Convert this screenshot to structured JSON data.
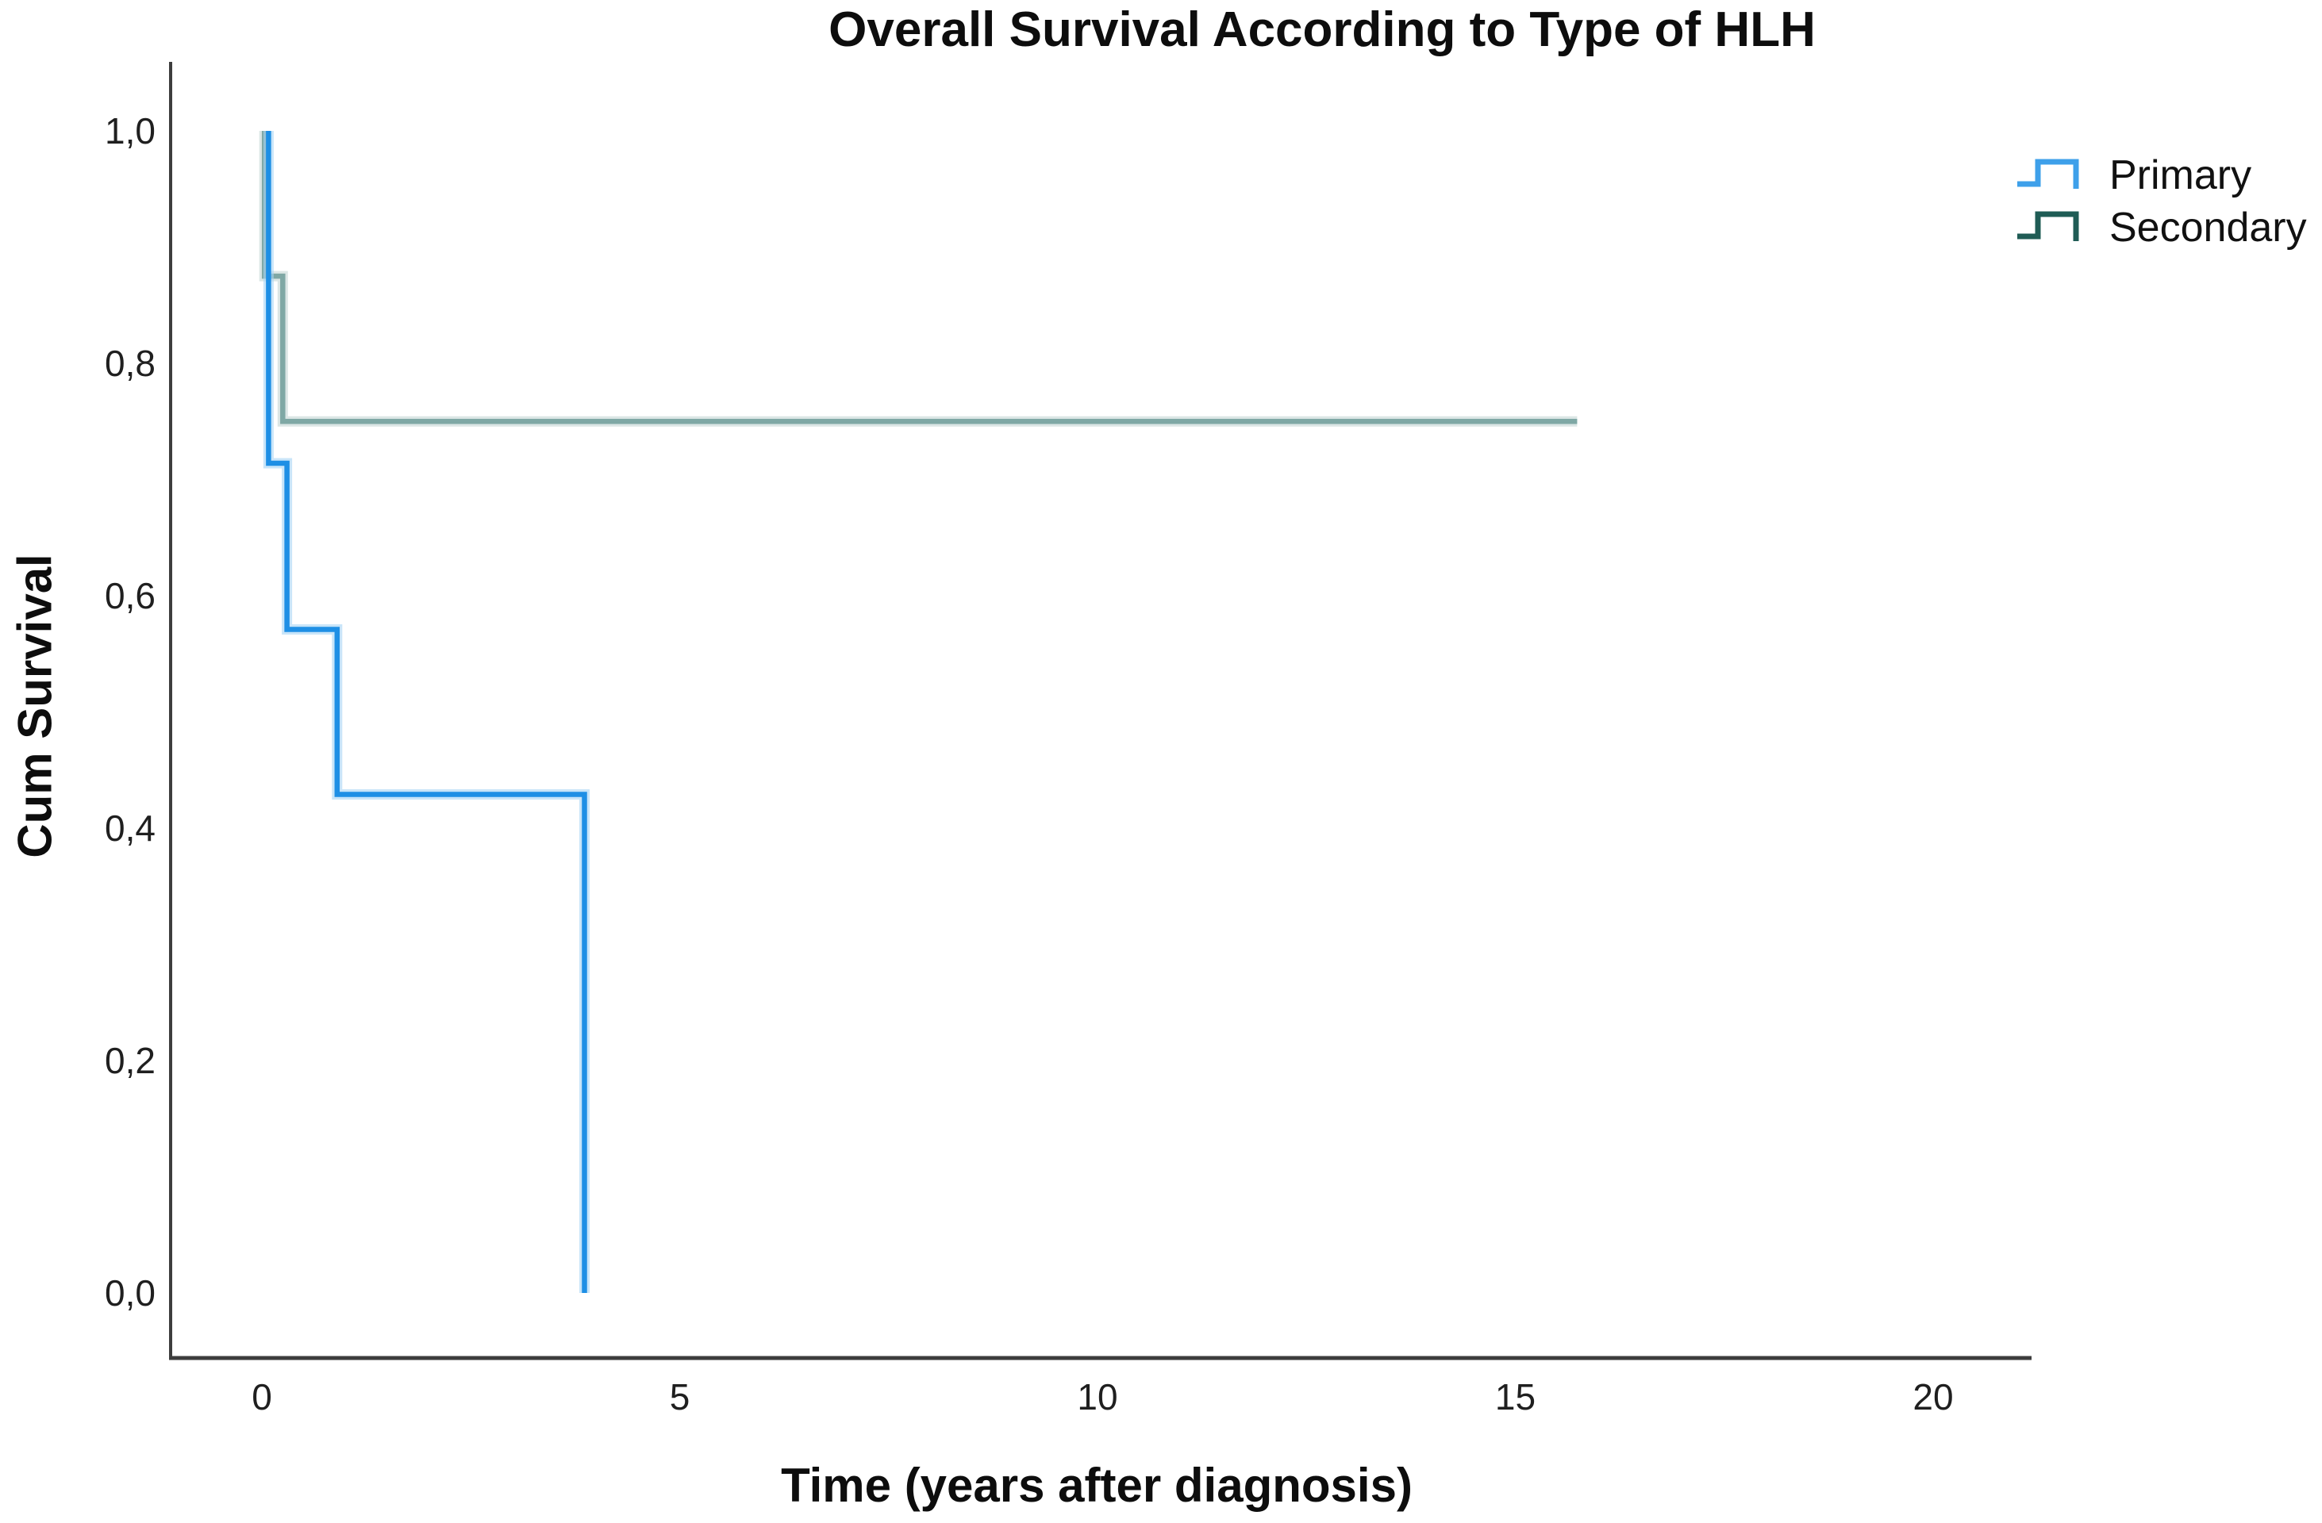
{
  "title": "Overall Survival According to Type of HLH",
  "y_axis": {
    "title": "Cum Survival",
    "ticks": [
      {
        "label": "1,0",
        "value": 1.0
      },
      {
        "label": "0,8",
        "value": 0.8
      },
      {
        "label": "0,6",
        "value": 0.6
      },
      {
        "label": "0,4",
        "value": 0.4
      },
      {
        "label": "0,2",
        "value": 0.2
      },
      {
        "label": "0,0",
        "value": 0.0
      }
    ]
  },
  "x_axis": {
    "title": "Time (years after diagnosis)",
    "ticks": [
      {
        "label": "0",
        "value": 0
      },
      {
        "label": "5",
        "value": 5
      },
      {
        "label": "10",
        "value": 10
      },
      {
        "label": "15",
        "value": 15
      },
      {
        "label": "20",
        "value": 20
      }
    ]
  },
  "legend": {
    "position": "top-right",
    "items": [
      {
        "label": "Primary"
      },
      {
        "label": "Secondary"
      }
    ]
  },
  "colors": {
    "axis": "#3d3d3d",
    "primary_line": "#1e8fe5",
    "primary_halo": "#a5d4f5",
    "primary_legend": "#3ea0ea",
    "secondary_line": "#7fa8a5",
    "secondary_halo": "#c3d6d3",
    "secondary_legend": "#1f5c55"
  },
  "chart_data": {
    "type": "line",
    "subtype": "kaplan_meier_step",
    "title": "Overall Survival According to Type of HLH",
    "xlabel": "Time (years after diagnosis)",
    "ylabel": "Cum Survival",
    "xlim": [
      -1.1,
      21.2
    ],
    "ylim": [
      -0.06,
      1.06
    ],
    "x_ticks": [
      0,
      5,
      10,
      15,
      20
    ],
    "y_ticks": [
      0.0,
      0.2,
      0.4,
      0.6,
      0.8,
      1.0
    ],
    "decimal_separator": ",",
    "grid": false,
    "legend_position": "top-right",
    "series": [
      {
        "name": "Primary",
        "color": "#1e8fe5",
        "halo": "#a5d4f5",
        "legend_color": "#3ea0ea",
        "points": [
          [
            0.08,
            1.0
          ],
          [
            0.08,
            0.714
          ],
          [
            0.3,
            0.714
          ],
          [
            0.3,
            0.571
          ],
          [
            0.9,
            0.571
          ],
          [
            0.9,
            0.429
          ],
          [
            3.86,
            0.429
          ],
          [
            3.86,
            0.0
          ]
        ]
      },
      {
        "name": "Secondary",
        "color": "#7fa8a5",
        "halo": "#c3d6d3",
        "legend_color": "#1f5c55",
        "points": [
          [
            0.03,
            1.0
          ],
          [
            0.03,
            0.875
          ],
          [
            0.25,
            0.875
          ],
          [
            0.25,
            0.75
          ],
          [
            15.74,
            0.75
          ]
        ]
      }
    ]
  }
}
